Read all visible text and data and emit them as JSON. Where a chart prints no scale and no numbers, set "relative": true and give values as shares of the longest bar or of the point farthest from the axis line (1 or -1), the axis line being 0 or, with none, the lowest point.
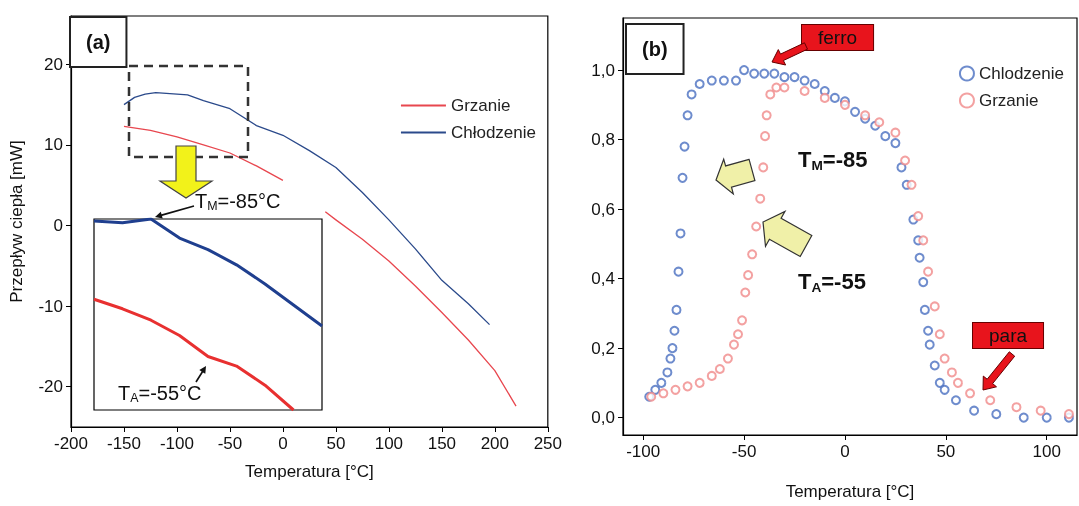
{
  "chart_data": [
    {
      "type": "line",
      "xlabel": "Temperatura [°C]",
      "ylabel": "Przepływ ciepła [mW]",
      "xlim": [
        -200,
        250
      ],
      "xticks": [
        -200,
        -150,
        -100,
        -50,
        0,
        50,
        100,
        150,
        200,
        250
      ],
      "ylim": [
        -25,
        26
      ],
      "yticks": [
        -20,
        -10,
        0,
        10,
        20
      ],
      "legend": "top right",
      "marker": "none",
      "line_style": "solid",
      "annotations": [
        "(a)"
      ],
      "series": [
        {
          "name": "Grzanie",
          "color": "#e8474f",
          "x": [
            -150,
            -125,
            -100,
            -75,
            -50,
            -25,
            0,
            15,
            40,
            50,
            75,
            100,
            125,
            150,
            175,
            200,
            220
          ],
          "values": [
            12.3,
            11.8,
            11,
            10,
            9,
            7.4,
            5.6,
            null,
            1.7,
            0.7,
            -1.7,
            -4.4,
            -7.5,
            -10.8,
            -14.2,
            -18,
            -22.4
          ]
        },
        {
          "name": "Chłodzenie",
          "color": "#2b4a8b",
          "x": [
            -150,
            -140,
            -130,
            -120,
            -100,
            -90,
            -75,
            -50,
            -25,
            0,
            25,
            50,
            75,
            100,
            125,
            150,
            175,
            195
          ],
          "values": [
            15,
            15.9,
            16.3,
            16.5,
            16.3,
            16.2,
            15.5,
            14.5,
            12.4,
            11.2,
            9.3,
            7.2,
            4.1,
            0.7,
            -2.9,
            -6.8,
            -9.7,
            -12.3
          ]
        }
      ]
    },
    {
      "type": "line",
      "relative": true,
      "categories": [
        null,
        null,
        null,
        null,
        null,
        null,
        null,
        null,
        null
      ],
      "marker": "none",
      "line_style": "solid",
      "annotations": [
        "T$_{M}$=-85°C",
        "T$_{A}$=-55°C"
      ],
      "series": [
        {
          "color": "#1f3f8f",
          "values": [
            0.99,
            0.98,
            1.0,
            0.9,
            0.84,
            0.76,
            0.66,
            0.55,
            0.44
          ]
        },
        {
          "color": "#e83030",
          "values": [
            0.58,
            0.53,
            0.47,
            0.39,
            0.28,
            0.23,
            0.13,
            0.0,
            null
          ]
        }
      ]
    },
    {
      "type": "scatter",
      "xlabel": "Temperatura [°C]",
      "xlim": [
        -110,
        115
      ],
      "xticks": [
        -100,
        -50,
        0,
        50,
        100
      ],
      "ylim": [
        -0.05,
        1.15
      ],
      "yticks": [
        {
          "value": 0,
          "label": "0,0"
        },
        {
          "value": 0.2,
          "label": "0,2"
        },
        {
          "value": 0.4,
          "label": "0,4"
        },
        {
          "value": 0.6,
          "label": "0,6"
        },
        {
          "value": 0.8,
          "label": "0,8"
        },
        {
          "value": 1,
          "label": "1,0"
        }
      ],
      "legend": "top right",
      "marker": "circle",
      "annotations": [
        "(b)",
        "T$_{M}$=-85",
        "T$_{A}$=-55",
        "ferro",
        "para"
      ],
      "series": [
        {
          "name": "Chlodzenie",
          "color": "#4a6fc0",
          "x": [
            -97,
            -94,
            -91,
            -88,
            -86.5,
            -85.5,
            -84.5,
            -83.5,
            -82.5,
            -81.5,
            -80.5,
            -79.5,
            -78,
            -76,
            -72,
            -66,
            -60,
            -54,
            -50,
            -45,
            -40,
            -35,
            -30,
            -25,
            -20,
            -15,
            -10,
            -5,
            0,
            5,
            10,
            15,
            20,
            25,
            28,
            30.6,
            33.9,
            36.3,
            37,
            38.8,
            39.6,
            41.2,
            42,
            44.5,
            47,
            49.4,
            55,
            64,
            75,
            88.6,
            100,
            111
          ],
          "values": [
            0.06,
            0.08,
            0.1,
            0.13,
            0.17,
            0.2,
            0.25,
            0.31,
            0.42,
            0.53,
            0.69,
            0.78,
            0.87,
            0.93,
            0.96,
            0.97,
            0.97,
            0.97,
            1.0,
            0.99,
            0.99,
            0.99,
            0.98,
            0.98,
            0.97,
            0.96,
            0.94,
            0.92,
            0.91,
            0.88,
            0.86,
            0.84,
            0.81,
            0.79,
            0.72,
            0.67,
            0.57,
            0.51,
            0.46,
            0.39,
            0.31,
            0.25,
            0.21,
            0.15,
            0.1,
            0.08,
            0.05,
            0.02,
            0.01,
            0.0,
            0.0,
            0.0
          ]
        },
        {
          "name": "Grzanie",
          "color": "#f08a8a",
          "x": [
            -96,
            -90,
            -84,
            -78,
            -72,
            -66,
            -62,
            -58,
            -55,
            -53,
            -51,
            -49.4,
            -48,
            -46,
            -44,
            -42,
            -40.5,
            -39.6,
            -38.8,
            -37,
            -34,
            -30,
            -20,
            -10,
            0,
            10,
            17,
            25,
            29.8,
            33,
            36.3,
            38.8,
            41.2,
            44.5,
            47,
            49.4,
            53,
            56,
            62,
            72,
            85,
            97,
            111
          ],
          "values": [
            0.06,
            0.07,
            0.08,
            0.09,
            0.1,
            0.12,
            0.14,
            0.17,
            0.21,
            0.24,
            0.28,
            0.36,
            0.41,
            0.47,
            0.55,
            0.63,
            0.72,
            0.81,
            0.87,
            0.93,
            0.95,
            0.95,
            0.94,
            0.92,
            0.9,
            0.87,
            0.85,
            0.82,
            0.74,
            0.67,
            0.58,
            0.51,
            0.42,
            0.32,
            0.24,
            0.17,
            0.13,
            0.1,
            0.07,
            0.05,
            0.03,
            0.02,
            0.01
          ]
        }
      ]
    }
  ]
}
